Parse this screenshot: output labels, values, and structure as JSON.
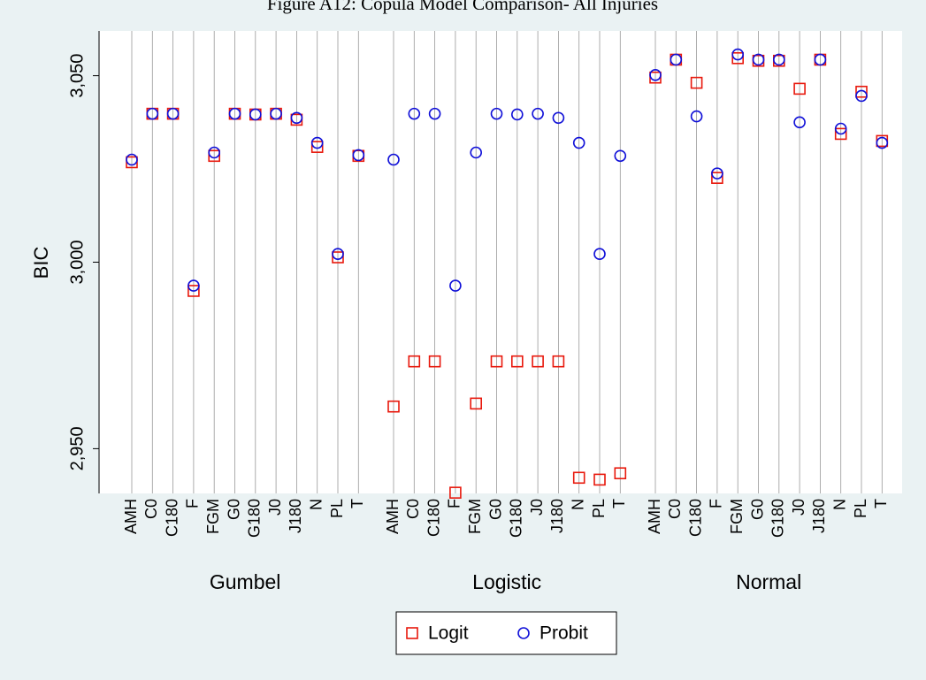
{
  "chart_data": {
    "type": "dot",
    "title": "Figure A12: Copula Model Comparison- All Injuries",
    "y_label": "BIC",
    "ylim": [
      2938,
      3062
    ],
    "yticks": [
      {
        "value": 2950,
        "label": "2,950"
      },
      {
        "value": 3000,
        "label": "3,000"
      },
      {
        "value": 3050,
        "label": "3,050"
      }
    ],
    "grid": true,
    "series": [
      {
        "name": "Logit",
        "color": "#e8180c",
        "marker": "square"
      },
      {
        "name": "Probit",
        "color": "#1010d8",
        "marker": "circle"
      }
    ],
    "groups": [
      {
        "name": "Gumbel",
        "categories": [
          "AMH",
          "C0",
          "C180",
          "F",
          "FGM",
          "G0",
          "G180",
          "J0",
          "J180",
          "N",
          "PL",
          "T"
        ],
        "series": [
          {
            "values": [
              3026.8,
              3039.8,
              3039.8,
              2992.3,
              3028.5,
              3039.8,
              3039.6,
              3039.8,
              3038.2,
              3030.9,
              3001.3,
              3028.5
            ]
          },
          {
            "values": [
              3027.5,
              3039.8,
              3039.8,
              2993.7,
              3029.4,
              3039.8,
              3039.6,
              3039.8,
              3038.7,
              3032.0,
              3002.2,
              3028.7
            ]
          }
        ]
      },
      {
        "name": "Logistic",
        "categories": [
          "AMH",
          "C0",
          "C180",
          "F",
          "FGM",
          "G0",
          "G180",
          "J0",
          "J180",
          "N",
          "PL",
          "T"
        ],
        "series": [
          {
            "values": [
              2961.3,
              2973.4,
              2973.4,
              2938.2,
              2962.1,
              2973.4,
              2973.4,
              2973.4,
              2973.4,
              2942.2,
              2941.7,
              2943.4
            ]
          },
          {
            "values": [
              3027.5,
              3039.8,
              3039.8,
              2993.7,
              3029.4,
              3039.8,
              3039.6,
              3039.8,
              3038.7,
              3032.0,
              3002.2,
              3028.5
            ]
          }
        ]
      },
      {
        "name": "Normal",
        "categories": [
          "AMH",
          "C0",
          "C180",
          "F",
          "FGM",
          "G0",
          "G180",
          "J0",
          "J180",
          "N",
          "PL",
          "T"
        ],
        "series": [
          {
            "values": [
              3049.5,
              3054.3,
              3048.1,
              3022.6,
              3054.7,
              3054.0,
              3054.0,
              3046.5,
              3054.3,
              3034.4,
              3045.7,
              3032.5
            ]
          },
          {
            "values": [
              3050.2,
              3054.3,
              3039.1,
              3023.8,
              3055.7,
              3054.3,
              3054.3,
              3037.5,
              3054.3,
              3035.8,
              3044.6,
              3032.0
            ]
          }
        ]
      }
    ],
    "legend": "bottom"
  }
}
